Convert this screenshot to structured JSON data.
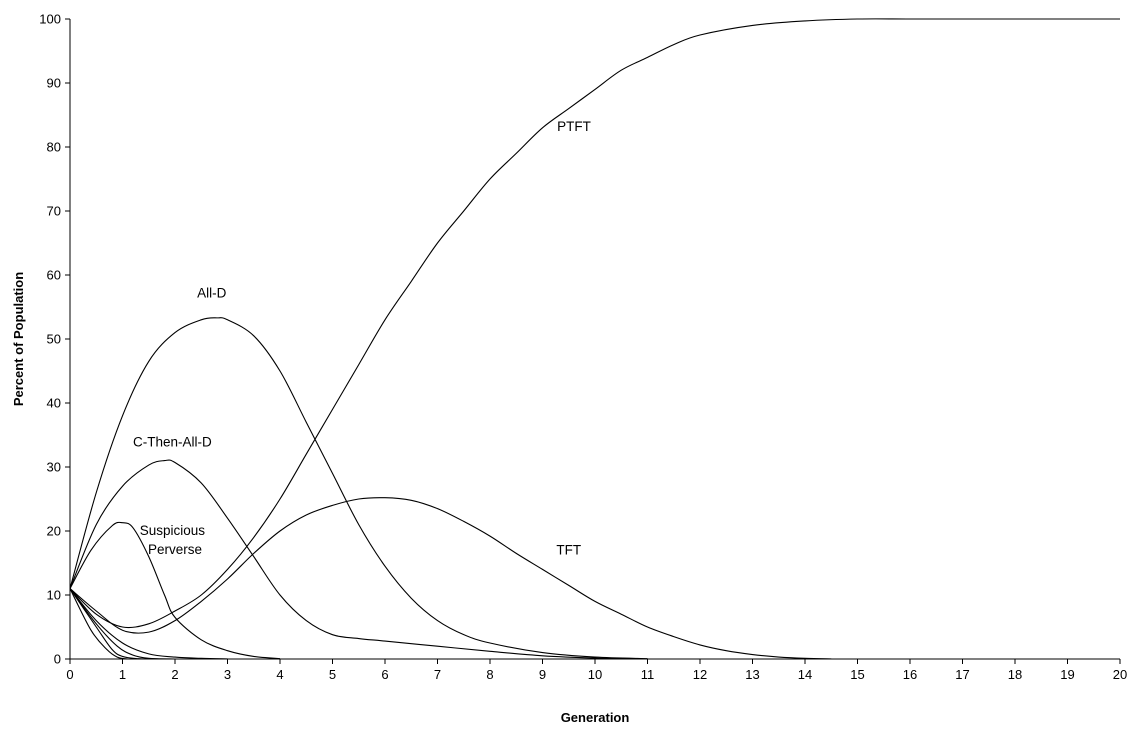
{
  "chart_data": {
    "type": "line",
    "title": "",
    "xlabel": "Generation",
    "ylabel": "Percent of Population",
    "xlim": [
      0,
      20
    ],
    "ylim": [
      0,
      100
    ],
    "xticks": [
      0,
      1,
      2,
      3,
      4,
      5,
      6,
      7,
      8,
      9,
      10,
      11,
      12,
      13,
      14,
      15,
      16,
      17,
      18,
      19,
      20
    ],
    "yticks": [
      0,
      10,
      20,
      30,
      40,
      50,
      60,
      70,
      80,
      90,
      100
    ],
    "grid": false,
    "legend": "none",
    "series": [
      {
        "name": "PTFT",
        "points": [
          [
            0,
            11
          ],
          [
            0.5,
            7
          ],
          [
            1,
            5
          ],
          [
            1.5,
            5.5
          ],
          [
            2,
            7.5
          ],
          [
            2.5,
            10
          ],
          [
            3,
            14
          ],
          [
            3.5,
            19
          ],
          [
            4,
            25
          ],
          [
            4.5,
            32
          ],
          [
            5,
            39
          ],
          [
            5.5,
            46
          ],
          [
            6,
            53
          ],
          [
            6.5,
            59
          ],
          [
            7,
            65
          ],
          [
            7.5,
            70
          ],
          [
            8,
            75
          ],
          [
            8.5,
            79
          ],
          [
            9,
            83
          ],
          [
            9.5,
            86
          ],
          [
            10,
            89
          ],
          [
            10.5,
            92
          ],
          [
            11,
            94
          ],
          [
            11.5,
            96
          ],
          [
            12,
            97.5
          ],
          [
            13,
            99
          ],
          [
            14,
            99.7
          ],
          [
            15,
            100
          ],
          [
            16,
            100
          ],
          [
            17,
            100
          ],
          [
            18,
            100
          ],
          [
            19,
            100
          ],
          [
            20,
            100
          ]
        ]
      },
      {
        "name": "All-D",
        "points": [
          [
            0,
            11
          ],
          [
            0.5,
            26
          ],
          [
            1,
            38
          ],
          [
            1.5,
            46.5
          ],
          [
            2,
            51
          ],
          [
            2.5,
            53
          ],
          [
            2.8,
            53.3
          ],
          [
            3,
            53
          ],
          [
            3.5,
            50.5
          ],
          [
            4,
            45
          ],
          [
            4.5,
            37
          ],
          [
            5,
            29
          ],
          [
            5.5,
            21
          ],
          [
            6,
            14.5
          ],
          [
            6.5,
            9.5
          ],
          [
            7,
            6
          ],
          [
            7.5,
            3.8
          ],
          [
            8,
            2.5
          ],
          [
            9,
            1
          ],
          [
            10,
            0.3
          ],
          [
            11,
            0.05
          ]
        ]
      },
      {
        "name": "C-Then-All-D",
        "points": [
          [
            0,
            11
          ],
          [
            0.5,
            21
          ],
          [
            1,
            27
          ],
          [
            1.5,
            30.3
          ],
          [
            1.8,
            31
          ],
          [
            2,
            30.7
          ],
          [
            2.5,
            27.5
          ],
          [
            3,
            22
          ],
          [
            3.5,
            16
          ],
          [
            4,
            10
          ],
          [
            4.5,
            6
          ],
          [
            5,
            3.8
          ],
          [
            5.5,
            3.2
          ],
          [
            6,
            2.8
          ],
          [
            7,
            2
          ],
          [
            8,
            1.2
          ],
          [
            9,
            0.5
          ],
          [
            10,
            0.15
          ],
          [
            11,
            0.02
          ]
        ]
      },
      {
        "name": "TFT",
        "points": [
          [
            0,
            11
          ],
          [
            0.5,
            7.5
          ],
          [
            1,
            4.5
          ],
          [
            1.5,
            4.2
          ],
          [
            2,
            6
          ],
          [
            2.5,
            9
          ],
          [
            3,
            12.5
          ],
          [
            3.5,
            16.5
          ],
          [
            4,
            20
          ],
          [
            4.5,
            22.5
          ],
          [
            5,
            24
          ],
          [
            5.5,
            25
          ],
          [
            6,
            25.2
          ],
          [
            6.5,
            24.8
          ],
          [
            7,
            23.5
          ],
          [
            7.5,
            21.5
          ],
          [
            8,
            19.2
          ],
          [
            8.5,
            16.5
          ],
          [
            9,
            14
          ],
          [
            9.5,
            11.5
          ],
          [
            10,
            9
          ],
          [
            10.5,
            7
          ],
          [
            11,
            5
          ],
          [
            11.5,
            3.5
          ],
          [
            12,
            2.2
          ],
          [
            12.5,
            1.3
          ],
          [
            13,
            0.7
          ],
          [
            13.5,
            0.3
          ],
          [
            14,
            0.1
          ],
          [
            14.5,
            0.02
          ]
        ]
      },
      {
        "name": "Suspicious Perverse",
        "points": [
          [
            0,
            11
          ],
          [
            0.4,
            17
          ],
          [
            0.8,
            20.8
          ],
          [
            1,
            21.3
          ],
          [
            1.2,
            20.5
          ],
          [
            1.5,
            16
          ],
          [
            1.8,
            10
          ],
          [
            2,
            6.5
          ],
          [
            2.5,
            3
          ],
          [
            3,
            1.3
          ],
          [
            3.5,
            0.4
          ],
          [
            4,
            0.05
          ]
        ]
      },
      {
        "name": "",
        "points": [
          [
            0,
            11
          ],
          [
            0.5,
            6
          ],
          [
            1,
            2.5
          ],
          [
            1.5,
            0.8
          ],
          [
            2,
            0.3
          ],
          [
            2.5,
            0.1
          ],
          [
            3,
            0.02
          ]
        ]
      },
      {
        "name": "",
        "points": [
          [
            0,
            11
          ],
          [
            0.5,
            5.5
          ],
          [
            0.9,
            2
          ],
          [
            1.2,
            0.6
          ],
          [
            1.5,
            0.1
          ],
          [
            2,
            0
          ]
        ]
      },
      {
        "name": "",
        "points": [
          [
            0,
            11
          ],
          [
            0.5,
            5
          ],
          [
            0.8,
            1.5
          ],
          [
            1,
            0.4
          ],
          [
            1.3,
            0.05
          ],
          [
            1.6,
            0
          ]
        ]
      },
      {
        "name": "",
        "points": [
          [
            0,
            11
          ],
          [
            0.4,
            4.5
          ],
          [
            0.7,
            1.5
          ],
          [
            0.9,
            0.3
          ],
          [
            1.1,
            0
          ]
        ]
      }
    ],
    "annotations": [
      {
        "text": "PTFT",
        "x": 9.6,
        "y": 82.5
      },
      {
        "text": "All-D",
        "x": 2.7,
        "y": 56.5
      },
      {
        "text": "C-Then-All-D",
        "x": 1.95,
        "y": 33.2
      },
      {
        "text": "TFT",
        "x": 9.5,
        "y": 16.3
      },
      {
        "text": "Suspicious",
        "x": 1.95,
        "y": 19.4
      },
      {
        "text": "Perverse",
        "x": 2.0,
        "y": 16.4
      }
    ]
  }
}
